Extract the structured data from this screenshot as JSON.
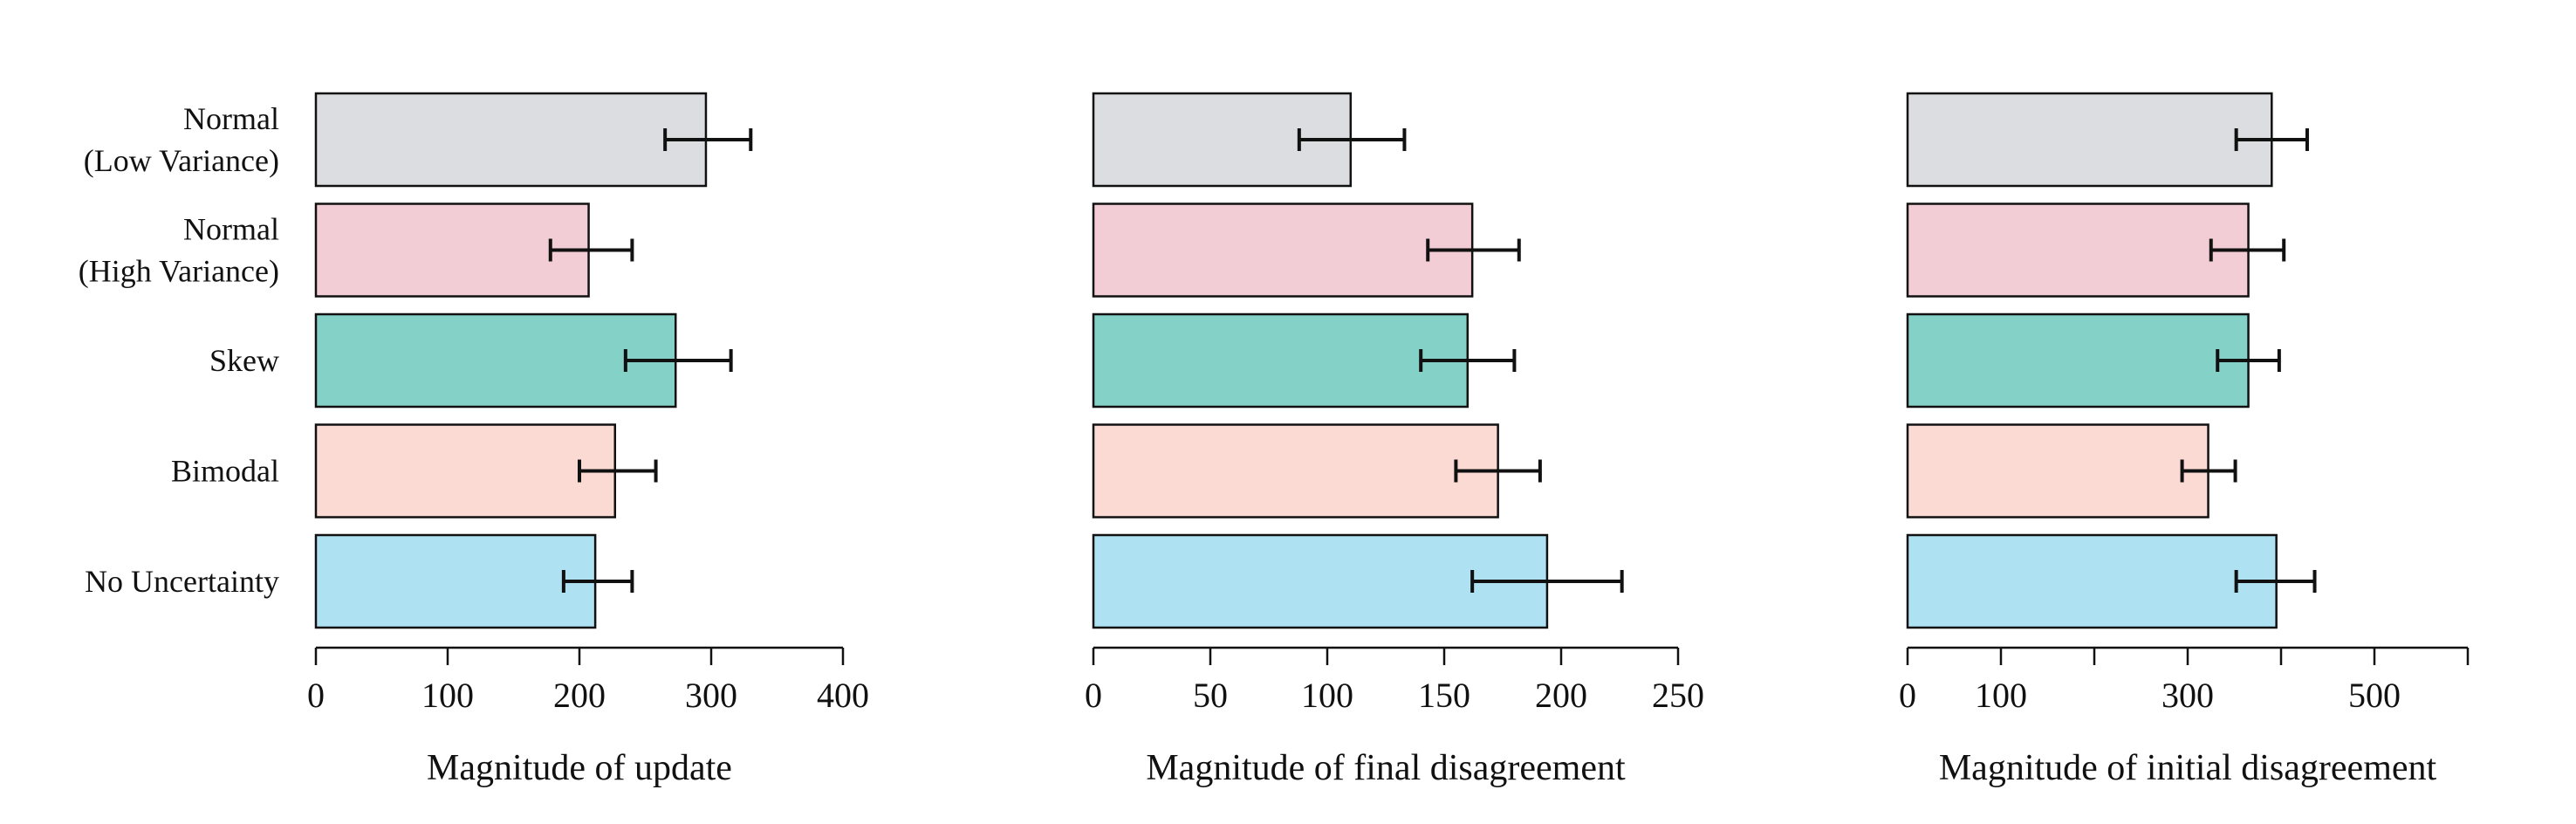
{
  "chart_data": [
    {
      "type": "bar",
      "orientation": "horizontal",
      "categories": [
        "Normal\n(Low Variance)",
        "Normal\n(High Variance)",
        "Skew",
        "Bimodal",
        "No Uncertainty"
      ],
      "values": [
        296,
        207,
        273,
        227,
        212
      ],
      "error_low": [
        265,
        178,
        235,
        200,
        188
      ],
      "error_high": [
        330,
        240,
        315,
        258,
        240
      ],
      "colors": [
        "#dcdde0",
        "#f3cdd6",
        "#84d1c8",
        "#fcdad4",
        "#aee2f2"
      ],
      "xlabel": "Magnitude of update",
      "xlim": [
        0,
        400
      ],
      "xticks": [
        0,
        100,
        200,
        300,
        400
      ],
      "xtick_labels": [
        "0",
        "100",
        "200",
        "300",
        "400"
      ],
      "grid": false
    },
    {
      "type": "bar",
      "orientation": "horizontal",
      "categories": [
        "Normal\n(Low Variance)",
        "Normal\n(High Variance)",
        "Skew",
        "Bimodal",
        "No Uncertainty"
      ],
      "values": [
        110,
        162,
        160,
        173,
        194
      ],
      "error_low": [
        88,
        143,
        140,
        155,
        162
      ],
      "error_high": [
        133,
        182,
        180,
        191,
        226
      ],
      "colors": [
        "#dcdde0",
        "#f3cdd6",
        "#84d1c8",
        "#fcdad4",
        "#aee2f2"
      ],
      "xlabel": "Magnitude of final disagreement",
      "xlim": [
        0,
        250
      ],
      "xticks": [
        0,
        50,
        100,
        150,
        200,
        250
      ],
      "xtick_labels": [
        "0",
        "50",
        "100",
        "150",
        "200",
        "250"
      ],
      "grid": false
    },
    {
      "type": "bar",
      "orientation": "horizontal",
      "categories": [
        "Normal\n(Low Variance)",
        "Normal\n(High Variance)",
        "Skew",
        "Bimodal",
        "No Uncertainty"
      ],
      "values": [
        390,
        365,
        365,
        322,
        395
      ],
      "error_low": [
        352,
        325,
        332,
        294,
        352
      ],
      "error_high": [
        428,
        403,
        398,
        351,
        436
      ],
      "colors": [
        "#dcdde0",
        "#f3cdd6",
        "#84d1c8",
        "#fcdad4",
        "#aee2f2"
      ],
      "xlabel": "Magnitude of initial disagreement",
      "xlim": [
        0,
        600
      ],
      "xticks": [
        0,
        100,
        200,
        300,
        400,
        500,
        600
      ],
      "xtick_labels": [
        "0",
        "100",
        "",
        "300",
        "",
        "500",
        ""
      ],
      "grid": false
    }
  ]
}
